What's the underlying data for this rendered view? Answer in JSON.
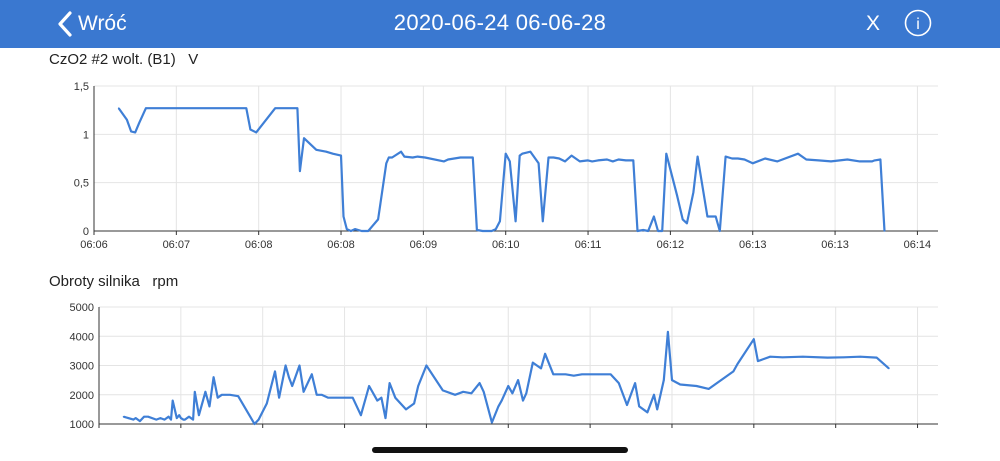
{
  "header": {
    "back_label": "Wróć",
    "title": "2020-06-24 06-06-28",
    "close_label": "X",
    "info_label": "i",
    "bg_color": "#3a78d0"
  },
  "icons": {
    "back": "chevron-left-icon",
    "info": "info-icon"
  },
  "line_color": "#3f7fd6",
  "chart_data": [
    {
      "type": "line",
      "title": "CzO2 #2 wolt. (B1)",
      "unit": "V",
      "ylim": [
        0,
        1.5
      ],
      "yticks": [
        "0",
        "0,5",
        "1",
        "1,5"
      ],
      "xticks": [
        "06:06",
        "06:07",
        "06:08",
        "06:08",
        "06:09",
        "06:10",
        "06:11",
        "06:12",
        "06:13",
        "06:13",
        "06:14"
      ],
      "xlim": [
        0,
        10.25
      ],
      "grid": true,
      "x": [
        0.3,
        0.4,
        0.45,
        0.5,
        0.55,
        0.63,
        1.85,
        1.9,
        1.97,
        2.2,
        2.43,
        2.47,
        2.5,
        2.55,
        2.7,
        2.82,
        2.9,
        3.0,
        3.03,
        3.07,
        3.12,
        3.17,
        3.25,
        3.33,
        3.38,
        3.45,
        3.55,
        3.58,
        3.62,
        3.73,
        3.77,
        3.87,
        3.93,
        4.02,
        4.25,
        4.3,
        4.45,
        4.6,
        4.65,
        4.72,
        4.83,
        4.88,
        4.93,
        5.0,
        5.05,
        5.12,
        5.17,
        5.2,
        5.3,
        5.4,
        5.45,
        5.52,
        5.58,
        5.65,
        5.72,
        5.8,
        5.9,
        6.0,
        6.05,
        6.12,
        6.23,
        6.3,
        6.37,
        6.46,
        6.55,
        6.6,
        6.67,
        6.73,
        6.8,
        6.85,
        6.9,
        6.95,
        7.08,
        7.15,
        7.2,
        7.28,
        7.33,
        7.45,
        7.55,
        7.6,
        7.67,
        7.75,
        7.82,
        7.9,
        8.0,
        8.15,
        8.3,
        8.55,
        8.65,
        8.8,
        8.95,
        9.15,
        9.3,
        9.45,
        9.48,
        9.55,
        9.6
      ],
      "y": [
        1.27,
        1.15,
        1.03,
        1.02,
        1.12,
        1.27,
        1.27,
        1.05,
        1.02,
        1.27,
        1.27,
        1.27,
        0.62,
        0.96,
        0.84,
        0.82,
        0.8,
        0.78,
        0.15,
        0.02,
        0.0,
        0.02,
        0.0,
        0.0,
        0.05,
        0.12,
        0.7,
        0.76,
        0.76,
        0.82,
        0.77,
        0.76,
        0.77,
        0.76,
        0.72,
        0.74,
        0.76,
        0.76,
        0.01,
        0.0,
        0.0,
        0.02,
        0.1,
        0.8,
        0.72,
        0.1,
        0.78,
        0.8,
        0.82,
        0.7,
        0.1,
        0.76,
        0.76,
        0.75,
        0.72,
        0.78,
        0.72,
        0.73,
        0.72,
        0.73,
        0.74,
        0.72,
        0.74,
        0.73,
        0.73,
        0.0,
        0.01,
        0.0,
        0.15,
        0.0,
        0.0,
        0.8,
        0.37,
        0.12,
        0.08,
        0.4,
        0.77,
        0.15,
        0.15,
        0.0,
        0.77,
        0.75,
        0.75,
        0.74,
        0.7,
        0.75,
        0.72,
        0.8,
        0.74,
        0.73,
        0.72,
        0.74,
        0.72,
        0.72,
        0.73,
        0.74,
        0.0
      ]
    },
    {
      "type": "line",
      "title": "Obroty silnika",
      "unit": "rpm",
      "ylim": [
        1000,
        5000
      ],
      "yticks": [
        "1000",
        "2000",
        "3000",
        "4000",
        "5000"
      ],
      "xlim": [
        0,
        10.25
      ],
      "grid": true,
      "x": [
        0.3,
        0.42,
        0.45,
        0.5,
        0.55,
        0.6,
        0.7,
        0.75,
        0.8,
        0.85,
        0.88,
        0.9,
        0.95,
        0.98,
        1.0,
        1.03,
        1.05,
        1.1,
        1.15,
        1.17,
        1.22,
        1.27,
        1.3,
        1.35,
        1.4,
        1.45,
        1.5,
        1.55,
        1.6,
        1.7,
        1.9,
        1.95,
        2.05,
        2.15,
        2.2,
        2.28,
        2.32,
        2.36,
        2.45,
        2.5,
        2.6,
        2.66,
        2.72,
        2.8,
        2.9,
        3.0,
        3.1,
        3.2,
        3.3,
        3.4,
        3.45,
        3.5,
        3.55,
        3.62,
        3.75,
        3.85,
        3.9,
        4.0,
        4.2,
        4.35,
        4.45,
        4.55,
        4.65,
        4.7,
        4.8,
        4.88,
        4.92,
        5.0,
        5.05,
        5.12,
        5.18,
        5.22,
        5.3,
        5.4,
        5.45,
        5.55,
        5.7,
        5.8,
        5.9,
        6.0,
        6.1,
        6.25,
        6.35,
        6.45,
        6.55,
        6.6,
        6.7,
        6.78,
        6.82,
        6.9,
        6.95,
        7.0,
        7.1,
        7.3,
        7.45,
        7.6,
        7.75,
        7.8,
        8.0,
        8.05,
        8.2,
        8.35,
        8.6,
        8.9,
        9.1,
        9.3,
        9.5,
        9.65
      ],
      "y": [
        1250,
        1150,
        1200,
        1100,
        1250,
        1250,
        1150,
        1200,
        1150,
        1250,
        1150,
        1800,
        1200,
        1300,
        1200,
        1150,
        1150,
        1250,
        1150,
        2100,
        1300,
        1800,
        2100,
        1600,
        2600,
        1900,
        2000,
        2000,
        2000,
        1950,
        1000,
        1150,
        1700,
        2800,
        1900,
        3000,
        2600,
        2300,
        3000,
        2100,
        2700,
        2000,
        2000,
        1900,
        1900,
        1900,
        1900,
        1300,
        2300,
        1800,
        1900,
        1200,
        2400,
        1900,
        1500,
        1700,
        2300,
        3000,
        2150,
        2000,
        2100,
        2050,
        2400,
        2100,
        1050,
        1600,
        1800,
        2300,
        2050,
        2500,
        1800,
        2050,
        3100,
        2900,
        3400,
        2700,
        2700,
        2650,
        2700,
        2700,
        2700,
        2700,
        2400,
        1650,
        2400,
        1600,
        1400,
        2000,
        1500,
        2500,
        4150,
        2500,
        2350,
        2300,
        2200,
        2500,
        2800,
        3050,
        3900,
        3150,
        3300,
        3280,
        3300,
        3270,
        3280,
        3300,
        3270,
        2900
      ]
    }
  ]
}
